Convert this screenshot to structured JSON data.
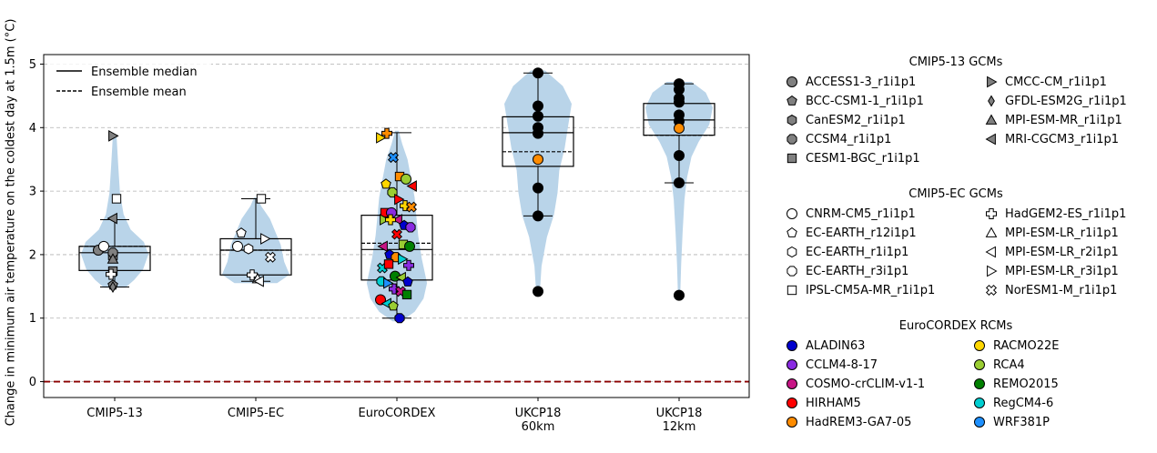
{
  "chart_data": {
    "type": "violin+box+strip",
    "ylabel": "Change in minimum air temperature on the coldest day at 1.5m (°C)",
    "ylim": [
      -0.25,
      5.15
    ],
    "yticks": [
      "0",
      "1",
      "2",
      "3",
      "4",
      "5"
    ],
    "grid": "horizontal dashed",
    "reference_line": {
      "y": 0,
      "style": "dashed",
      "color": "#8b0000"
    },
    "categories": [
      "CMIP5-13",
      "CMIP5-EC",
      "EuroCORDEX",
      "UKCP18\n60km",
      "UKCP18\n12km"
    ],
    "inner_legend": {
      "placement": "top-left",
      "items": [
        "Ensemble median",
        "Ensemble mean"
      ]
    },
    "groups": [
      {
        "name": "CMIP5-13",
        "violin": [
          1.48,
          3.88
        ],
        "box": {
          "q1": 1.75,
          "median": 2.03,
          "q3": 2.13,
          "mean": 2.13,
          "whislo": 1.49,
          "whishi": 2.55
        },
        "points": [
          {
            "model": "ACCESS1-3_r1i1p1",
            "y": 2.07
          },
          {
            "model": "BCC-CSM1-1_r1i1p1",
            "y": 1.52
          },
          {
            "model": "CanESM2_r1i1p1",
            "y": 1.96
          },
          {
            "model": "CCSM4_r1i1p1",
            "y": 2.03
          },
          {
            "model": "CESM1-BGC_r1i1p1",
            "y": 1.74
          },
          {
            "model": "CMCC-CM_r1i1p1",
            "y": 3.87
          },
          {
            "model": "GFDL-ESM2G_r1i1p1",
            "y": 1.49
          },
          {
            "model": "MPI-ESM-MR_r1i1p1",
            "y": 1.93
          },
          {
            "model": "MRI-CGCM3_r1i1p1",
            "y": 2.57
          },
          {
            "model": "CNRM-CM5_r1i1p1",
            "y": 2.13
          },
          {
            "model": "HadGEM2-ES_r1i1p1",
            "y": 1.69
          },
          {
            "model": "IPSL-CM5A-MR_r1i1p1",
            "y": 2.88
          }
        ]
      },
      {
        "name": "CMIP5-EC",
        "violin": [
          1.55,
          2.9
        ],
        "box": {
          "q1": 1.68,
          "median": 2.07,
          "q3": 2.25,
          "mean": 2.07,
          "whislo": 1.58,
          "whishi": 2.88
        },
        "points": [
          {
            "model": "CNRM-CM5_r1i1p1",
            "y": 2.13
          },
          {
            "model": "EC-EARTH_r12i1p1",
            "y": 2.34
          },
          {
            "model": "EC-EARTH_r1i1p1",
            "y": 2.09
          },
          {
            "model": "HadGEM2-ES_r1i1p1",
            "y": 1.68
          },
          {
            "model": "IPSL-CM5A-MR_r1i1p1",
            "y": 2.88
          },
          {
            "model": "MPI-ESM-LR_r1i1p1",
            "y": 1.62
          },
          {
            "model": "MPI-ESM-LR_r2i1p1",
            "y": 1.58
          },
          {
            "model": "MPI-ESM-LR_r3i1p1",
            "y": 2.25
          },
          {
            "model": "NorESM1-M_r1i1p1",
            "y": 1.96
          }
        ]
      },
      {
        "name": "EuroCORDEX",
        "violin": [
          0.95,
          3.95
        ],
        "box": {
          "q1": 1.6,
          "median": 2.08,
          "q3": 2.62,
          "mean": 2.18,
          "whislo": 1.0,
          "whishi": 3.92
        },
        "points": [
          {
            "model": "RACMO22E",
            "y": 3.84
          },
          {
            "model": "HadREM3-GA7-05",
            "y": 3.91
          },
          {
            "model": "WRF381P",
            "y": 3.53
          },
          {
            "model": "HadREM3-GA7-05",
            "y": 3.23
          },
          {
            "model": "RCA4",
            "y": 3.19
          },
          {
            "model": "HIRHAM5",
            "y": 3.08
          },
          {
            "model": "RACMO22E",
            "y": 3.11
          },
          {
            "model": "RCA4",
            "y": 2.98
          },
          {
            "model": "HIRHAM5",
            "y": 2.87
          },
          {
            "model": "RACMO22E",
            "y": 2.77
          },
          {
            "model": "HadREM3-GA7-05",
            "y": 2.75
          },
          {
            "model": "HIRHAM5",
            "y": 2.66
          },
          {
            "model": "CCLM4-8-17",
            "y": 2.66
          },
          {
            "model": "COSMO-crCLIM-v1-1",
            "y": 2.55
          },
          {
            "model": "ALADIN63",
            "y": 2.46
          },
          {
            "model": "CCLM4-8-17",
            "y": 2.43
          },
          {
            "model": "RCA4",
            "y": 2.55
          },
          {
            "model": "RACMO22E",
            "y": 2.55
          },
          {
            "model": "HIRHAM5",
            "y": 2.32
          },
          {
            "model": "RCA4",
            "y": 2.16
          },
          {
            "model": "REMO2015",
            "y": 2.13
          },
          {
            "model": "COSMO-crCLIM-v1-1",
            "y": 2.13
          },
          {
            "model": "ALADIN63",
            "y": 2.0
          },
          {
            "model": "HadREM3-GA7-05",
            "y": 1.96
          },
          {
            "model": "RegCM4-6",
            "y": 1.93
          },
          {
            "model": "CCLM4-8-17",
            "y": 1.83
          },
          {
            "model": "RegCM4-6",
            "y": 1.79
          },
          {
            "model": "HIRHAM5",
            "y": 1.85
          },
          {
            "model": "REMO2015",
            "y": 1.66
          },
          {
            "model": "RCA4",
            "y": 1.64
          },
          {
            "model": "ALADIN63",
            "y": 1.57
          },
          {
            "model": "RegCM4-6",
            "y": 1.58
          },
          {
            "model": "WRF381P",
            "y": 1.55
          },
          {
            "model": "CCLM4-8-17",
            "y": 1.46
          },
          {
            "model": "COSMO-crCLIM-v1-1",
            "y": 1.42
          },
          {
            "model": "REMO2015",
            "y": 1.37
          },
          {
            "model": "HIRHAM5",
            "y": 1.29
          },
          {
            "model": "RegCM4-6",
            "y": 1.23
          },
          {
            "model": "RCA4",
            "y": 1.19
          },
          {
            "model": "ALADIN63",
            "y": 1.0
          }
        ]
      },
      {
        "name": "UKCP18 60km",
        "violin": [
          1.4,
          4.9
        ],
        "box": {
          "q1": 3.39,
          "median": 3.92,
          "q3": 4.17,
          "mean": 3.62,
          "whislo": 2.61,
          "whishi": 4.86
        },
        "points": [
          {
            "model": "UKCP18",
            "y": 4.86
          },
          {
            "model": "UKCP18",
            "y": 4.34
          },
          {
            "model": "UKCP18",
            "y": 4.18
          },
          {
            "model": "UKCP18",
            "y": 4.0
          },
          {
            "model": "UKCP18",
            "y": 3.91
          },
          {
            "model": "HadREM3-GA7-05",
            "y": 3.5
          },
          {
            "model": "UKCP18",
            "y": 3.05
          },
          {
            "model": "UKCP18",
            "y": 2.61
          },
          {
            "model": "UKCP18",
            "y": 1.42
          }
        ]
      },
      {
        "name": "UKCP18 12km",
        "violin": [
          1.35,
          4.72
        ],
        "box": {
          "q1": 3.88,
          "median": 4.12,
          "q3": 4.38,
          "mean": 3.88,
          "whislo": 3.13,
          "whishi": 4.69
        },
        "points": [
          {
            "model": "UKCP18",
            "y": 4.69
          },
          {
            "model": "UKCP18",
            "y": 4.6
          },
          {
            "model": "UKCP18",
            "y": 4.46
          },
          {
            "model": "UKCP18",
            "y": 4.4
          },
          {
            "model": "UKCP18",
            "y": 4.2
          },
          {
            "model": "UKCP18",
            "y": 4.1
          },
          {
            "model": "HadREM3-GA7-05",
            "y": 3.99
          },
          {
            "model": "UKCP18",
            "y": 3.56
          },
          {
            "model": "UKCP18",
            "y": 3.13
          },
          {
            "model": "UKCP18",
            "y": 1.36
          }
        ]
      }
    ]
  },
  "legend": {
    "cmip5_13": {
      "title": "CMIP5-13 GCMs",
      "color": "#808080",
      "items": [
        {
          "label": "ACCESS1-3_r1i1p1",
          "marker": "circle"
        },
        {
          "label": "BCC-CSM1-1_r1i1p1",
          "marker": "pentagon"
        },
        {
          "label": "CanESM2_r1i1p1",
          "marker": "hexagon"
        },
        {
          "label": "CCSM4_r1i1p1",
          "marker": "octagon"
        },
        {
          "label": "CESM1-BGC_r1i1p1",
          "marker": "square"
        },
        {
          "label": "CMCC-CM_r1i1p1",
          "marker": "triangle-right"
        },
        {
          "label": "GFDL-ESM2G_r1i1p1",
          "marker": "thin-diamond"
        },
        {
          "label": "MPI-ESM-MR_r1i1p1",
          "marker": "triangle-up"
        },
        {
          "label": "MRI-CGCM3_r1i1p1",
          "marker": "triangle-left"
        }
      ]
    },
    "cmip5_ec": {
      "title": "CMIP5-EC GCMs",
      "color": "#ffffff",
      "items": [
        {
          "label": "CNRM-CM5_r1i1p1",
          "marker": "circle"
        },
        {
          "label": "EC-EARTH_r12i1p1",
          "marker": "pentagon"
        },
        {
          "label": "EC-EARTH_r1i1p1",
          "marker": "hexagon"
        },
        {
          "label": "EC-EARTH_r3i1p1",
          "marker": "octagon"
        },
        {
          "label": "IPSL-CM5A-MR_r1i1p1",
          "marker": "square"
        },
        {
          "label": "HadGEM2-ES_r1i1p1",
          "marker": "plus"
        },
        {
          "label": "MPI-ESM-LR_r1i1p1",
          "marker": "triangle-up"
        },
        {
          "label": "MPI-ESM-LR_r2i1p1",
          "marker": "triangle-left"
        },
        {
          "label": "MPI-ESM-LR_r3i1p1",
          "marker": "triangle-right"
        },
        {
          "label": "NorESM1-M_r1i1p1",
          "marker": "x"
        }
      ]
    },
    "eurocordex": {
      "title": "EuroCORDEX RCMs",
      "items": [
        {
          "label": "ALADIN63",
          "color": "#0000cd"
        },
        {
          "label": "CCLM4-8-17",
          "color": "#8a2be2"
        },
        {
          "label": "COSMO-crCLIM-v1-1",
          "color": "#c71585"
        },
        {
          "label": "HIRHAM5",
          "color": "#ff0000"
        },
        {
          "label": "HadREM3-GA7-05",
          "color": "#ff8c00"
        },
        {
          "label": "RACMO22E",
          "color": "#ffd700"
        },
        {
          "label": "RCA4",
          "color": "#9acd32"
        },
        {
          "label": "REMO2015",
          "color": "#008000"
        },
        {
          "label": "RegCM4-6",
          "color": "#00ced1"
        },
        {
          "label": "WRF381P",
          "color": "#1e90ff"
        }
      ]
    }
  },
  "colors": {
    "violin": "#b9d4e9",
    "zero_line": "#8b0000",
    "ukcp18": "#000000"
  }
}
